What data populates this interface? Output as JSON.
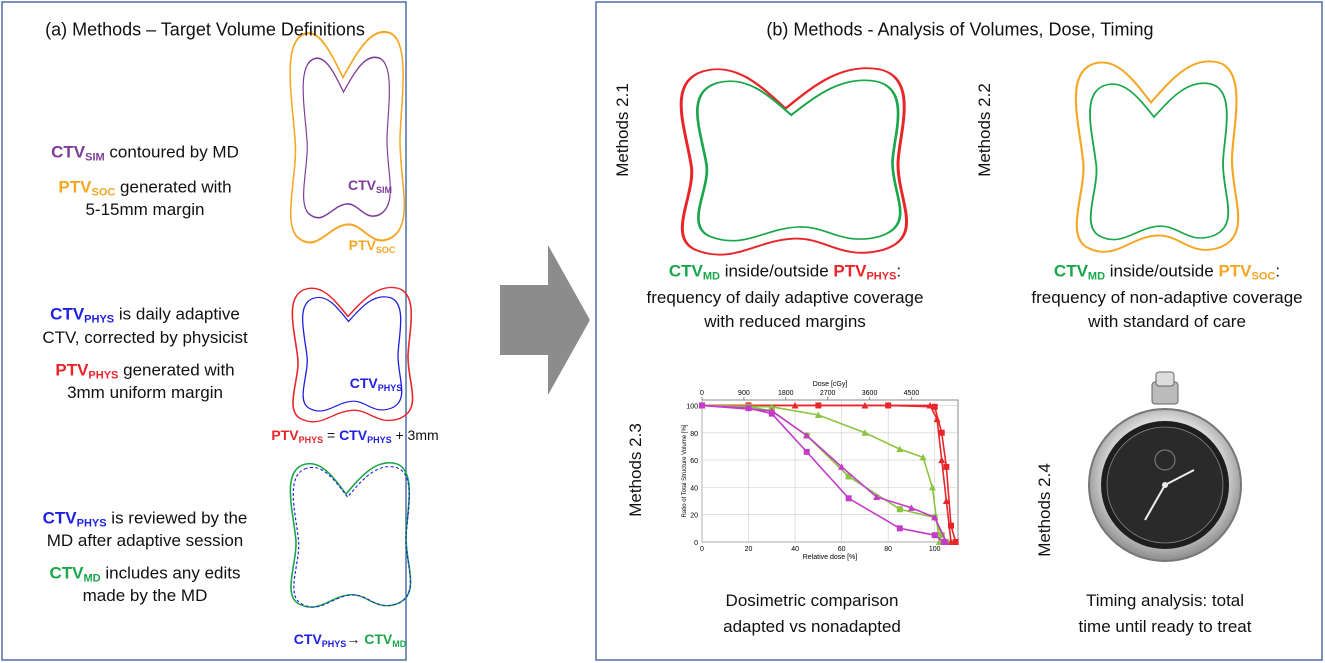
{
  "panel_a": {
    "title": "(a) Methods – Target Volume Definitions",
    "sim": {
      "text": [
        [
          {
            "t": "CTV",
            "c": "#7d3c98"
          },
          {
            "sub": "SIM",
            "c": "#7d3c98"
          },
          {
            "t": " contoured by MD"
          }
        ],
        [
          {
            "t": "PTV",
            "c": "#f5a623"
          },
          {
            "sub": "SOC",
            "c": "#f5a623"
          },
          {
            "t": " generated with"
          }
        ],
        [
          {
            "t": "5-15mm margin"
          }
        ]
      ],
      "ctv_label": [
        {
          "t": "CTV",
          "c": "#7d3c98"
        },
        {
          "sub": "SIM",
          "c": "#7d3c98"
        }
      ],
      "ptv_label": [
        {
          "t": "PTV",
          "c": "#f5a623"
        },
        {
          "sub": "SOC",
          "c": "#f5a623"
        }
      ]
    },
    "phys": {
      "text": [
        [
          {
            "t": "CTV",
            "c": "#1f1fe0"
          },
          {
            "sub": "PHYS",
            "c": "#1f1fe0"
          },
          {
            "t": " is daily adaptive"
          }
        ],
        [
          {
            "t": "CTV, corrected by physicist"
          }
        ],
        [
          {
            "t": "PTV",
            "c": "#e8262a"
          },
          {
            "sub": "PHYS",
            "c": "#e8262a"
          },
          {
            "t": " generated with"
          }
        ],
        [
          {
            "t": "3mm uniform margin"
          }
        ]
      ],
      "ctv_label": [
        {
          "t": "CTV",
          "c": "#1f1fe0"
        },
        {
          "sub": "PHYS",
          "c": "#1f1fe0"
        }
      ],
      "formula": [
        {
          "t": "PTV",
          "c": "#e8262a"
        },
        {
          "sub": "PHYS",
          "c": "#e8262a"
        },
        {
          "t": " = "
        },
        {
          "t": "CTV",
          "c": "#1f1fe0"
        },
        {
          "sub": "PHYS",
          "c": "#1f1fe0"
        },
        {
          "t": " + 3mm"
        }
      ]
    },
    "md": {
      "text": [
        [
          {
            "t": "CTV",
            "c": "#1f1fe0"
          },
          {
            "sub": "PHYS",
            "c": "#1f1fe0"
          },
          {
            "t": " is reviewed by the"
          }
        ],
        [
          {
            "t": "MD after adaptive session"
          }
        ],
        [
          {
            "t": "CTV",
            "c": "#1aa64a"
          },
          {
            "sub": "MD",
            "c": "#1aa64a"
          },
          {
            "t": " includes any edits"
          }
        ],
        [
          {
            "t": "made by the MD"
          }
        ]
      ],
      "formula": [
        {
          "t": "CTV",
          "c": "#1f1fe0"
        },
        {
          "sub": "PHYS",
          "c": "#1f1fe0"
        },
        {
          "t": "→ "
        },
        {
          "t": "CTV",
          "c": "#1aa64a"
        },
        {
          "sub": "MD",
          "c": "#1aa64a"
        }
      ]
    }
  },
  "panel_b": {
    "title": "(b) Methods -  Analysis of Volumes, Dose, Timing",
    "m21": {
      "label": "Methods 2.1",
      "caption": [
        [
          {
            "t": "CTV",
            "c": "#1aa64a"
          },
          {
            "sub": "MD",
            "c": "#1aa64a"
          },
          {
            "t": " inside/outside "
          },
          {
            "t": "PTV",
            "c": "#e8262a"
          },
          {
            "sub": "PHYS",
            "c": "#e8262a"
          },
          {
            "t": ":"
          }
        ],
        [
          {
            "t": "frequency of daily adaptive coverage"
          }
        ],
        [
          {
            "t": "with reduced margins"
          }
        ]
      ]
    },
    "m22": {
      "label": "Methods 2.2",
      "caption": [
        [
          {
            "t": "CTV",
            "c": "#1aa64a"
          },
          {
            "sub": "MD",
            "c": "#1aa64a"
          },
          {
            "t": " inside/outside "
          },
          {
            "t": "PTV",
            "c": "#f5a623"
          },
          {
            "sub": "SOC",
            "c": "#f5a623"
          },
          {
            "t": ":"
          }
        ],
        [
          {
            "t": "frequency of non-adaptive coverage"
          }
        ],
        [
          {
            "t": "with standard of care"
          }
        ]
      ]
    },
    "m23": {
      "label": "Methods 2.3",
      "caption": [
        [
          {
            "t": "Dosimetric comparison"
          }
        ],
        [
          {
            "t": "adapted vs nonadapted"
          }
        ]
      ],
      "dvh": {
        "type": "line",
        "top_label": "Dose [cGy]",
        "x_label": "Relative dose [%]",
        "y_label": "Ratio of Total Structure Volume [%]",
        "xlim": [
          0,
          110
        ],
        "ylim": [
          0,
          104
        ],
        "xticks": [
          0,
          20,
          40,
          60,
          80,
          100
        ],
        "yticks": [
          0,
          20,
          40,
          60,
          80,
          100
        ],
        "top_xlim": [
          0,
          5500
        ],
        "top_xticks": [
          0,
          900,
          1800,
          2700,
          3600,
          4500
        ],
        "grid": true,
        "series": [
          {
            "color": "#e8262a",
            "marker": "square",
            "x": [
              0,
              20,
              50,
              80,
              100,
              103,
              105,
              107,
              109
            ],
            "y": [
              100,
              100,
              100,
              100,
              99,
              80,
              55,
              12,
              0
            ]
          },
          {
            "color": "#e8262a",
            "marker": "triangle",
            "x": [
              0,
              40,
              70,
              98,
              101,
              103,
              105,
              107
            ],
            "y": [
              100,
              100,
              100,
              100,
              90,
              60,
              30,
              0
            ]
          },
          {
            "color": "#8bc53f",
            "marker": "square",
            "x": [
              0,
              20,
              30,
              45,
              63,
              85,
              100,
              103,
              105
            ],
            "y": [
              100,
              99,
              96,
              78,
              48,
              24,
              18,
              5,
              0
            ]
          },
          {
            "color": "#8bc53f",
            "marker": "triangle",
            "x": [
              0,
              30,
              50,
              70,
              85,
              95,
              99,
              102
            ],
            "y": [
              100,
              99,
              93,
              80,
              68,
              62,
              40,
              0
            ]
          },
          {
            "color": "#c43bc9",
            "marker": "square",
            "x": [
              0,
              20,
              30,
              45,
              63,
              85,
              100,
              104
            ],
            "y": [
              100,
              98,
              94,
              66,
              32,
              10,
              5,
              0
            ]
          },
          {
            "color": "#c43bc9",
            "marker": "triangle",
            "x": [
              0,
              30,
              45,
              60,
              75,
              90,
              100,
              105
            ],
            "y": [
              100,
              96,
              78,
              55,
              33,
              25,
              18,
              0
            ]
          }
        ]
      }
    },
    "m24": {
      "label": "Methods 2.4",
      "caption": [
        [
          {
            "t": "Timing analysis: total"
          }
        ],
        [
          {
            "t": "time until ready to treat"
          }
        ]
      ]
    }
  }
}
